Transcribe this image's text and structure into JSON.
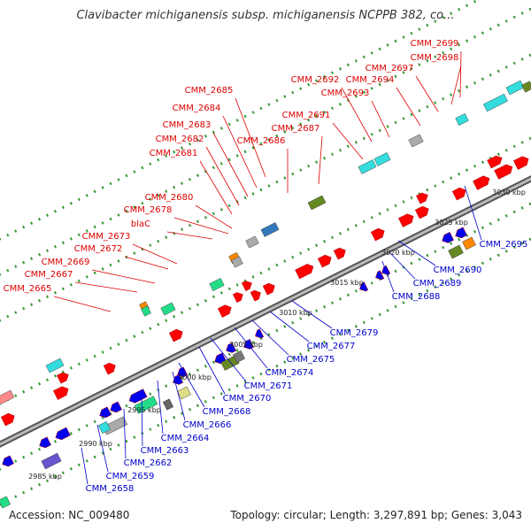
{
  "title": "Clavibacter michiganensis subsp. michiganensis NCPPB 382, co...",
  "footer": {
    "accession": "Accession: NC_009480",
    "summary": "Topology: circular; Length: 3,297,891 bp; Genes: 3,043"
  },
  "colors": {
    "forward_label": "#dd0000",
    "reverse_label": "#0000cc",
    "feature_red": "#ff0000",
    "feature_blue": "#0000ee",
    "feature_cyan": "#33dddd",
    "feature_olive": "#668822",
    "feature_mint": "#22dd88",
    "feature_orange": "#ff8800",
    "feature_gray": "#aaaaaa",
    "feature_steel": "#3377bb",
    "feature_khaki": "#dddd88",
    "feature_pink": "#ff8888",
    "feature_violet": "#6655cc",
    "dotted_track": "#339933",
    "backbone": "#888888"
  },
  "ticks": [
    "2985 kbp",
    "2990 kbp",
    "2995 kbp",
    "3000 kbp",
    "3005 kbp",
    "3010 kbp",
    "3015 kbp",
    "3020 kbp",
    "3025 kbp",
    "3030 kbp"
  ],
  "forward_labels": [
    "CMM_2699",
    "CMM_2698",
    "CMM_2697",
    "CMM_2694",
    "CMM_2692",
    "CMM_2693",
    "CMM_2685",
    "CMM_2684",
    "CMM_2691",
    "CMM_2683",
    "CMM_2687",
    "CMM_2682",
    "CMM_2686",
    "CMM_2681",
    "CMM_2680",
    "CMM_2678",
    "blaC",
    "CMM_2673",
    "CMM_2672",
    "CMM_2669",
    "CMM_2667",
    "CMM_2665"
  ],
  "reverse_labels": [
    "CMM_2695",
    "CMM_2690",
    "CMM_2689",
    "CMM_2688",
    "CMM_2679",
    "CMM_2677",
    "CMM_2675",
    "CMM_2674",
    "CMM_2671",
    "CMM_2670",
    "CMM_2668",
    "CMM_2666",
    "CMM_2664",
    "CMM_2663",
    "CMM_2662",
    "CMM_2659",
    "CMM_2658"
  ]
}
